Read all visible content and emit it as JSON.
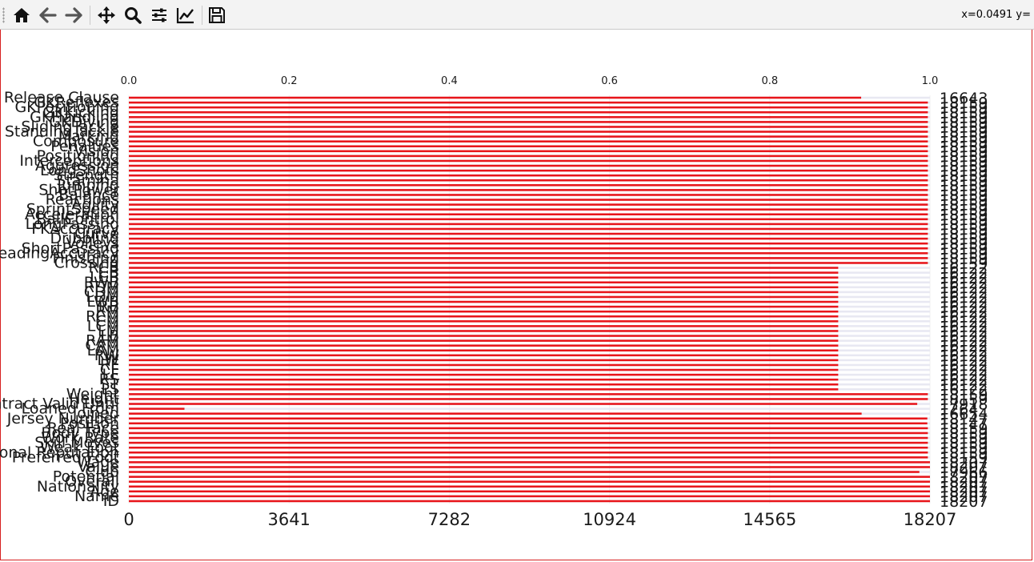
{
  "toolbar": {
    "buttons": [
      {
        "name": "home-icon",
        "label": "Home"
      },
      {
        "name": "back-icon",
        "label": "Back"
      },
      {
        "name": "forward-icon",
        "label": "Forward"
      },
      {
        "name": "pan-icon",
        "label": "Pan"
      },
      {
        "name": "zoom-icon",
        "label": "Zoom"
      },
      {
        "name": "subplots-icon",
        "label": "Configure subplots"
      },
      {
        "name": "axes-edit-icon",
        "label": "Edit axis"
      },
      {
        "name": "save-icon",
        "label": "Save"
      }
    ],
    "coords_text": "x=0.0491 y="
  },
  "colors": {
    "bar": "#e8161b",
    "remainder": "#e8e8f2",
    "text": "#1a1a1a"
  },
  "chart_data": {
    "type": "bar",
    "orientation": "horizontal",
    "total": 18207,
    "categories": [
      "Release Clause",
      "GKReflexes",
      "GKPositioning",
      "GKKicking",
      "GKHandling",
      "GKDiving",
      "SlidingTackle",
      "StandingTackle",
      "Marking",
      "Composure",
      "Penalties",
      "Vision",
      "Positioning",
      "Interceptions",
      "Aggression",
      "LongShots",
      "Strength",
      "Stamina",
      "Jumping",
      "ShotPower",
      "Balance",
      "Reactions",
      "Agility",
      "SprintSpeed",
      "Acceleration",
      "BallControl",
      "LongPassing",
      "FKAccuracy",
      "Curve",
      "Dribbling",
      "Volleys",
      "ShortPassing",
      "HeadingAccuracy",
      "Finishing",
      "Crossing",
      "RCB",
      "CB",
      "LCB",
      "RWB",
      "RDM",
      "CDM",
      "LDM",
      "LWB",
      "RB",
      "RM",
      "RCM",
      "CM",
      "LCM",
      "LM",
      "LB",
      "RAM",
      "CAM",
      "LAM",
      "RW",
      "LW",
      "RF",
      "CF",
      "LF",
      "RS",
      "ST",
      "LS",
      "Weight",
      "Height",
      "Contract Valid Until",
      "Loaned From",
      "Joined",
      "Jersey Number",
      "Position",
      "Real Face",
      "Body Type",
      "Work Rate",
      "Skill Moves",
      "Weak Foot",
      "International Reputation",
      "Preferred Foot",
      "Wage",
      "Value",
      "Club",
      "Potential",
      "Overall",
      "Nationality",
      "Age",
      "Name",
      "ID"
    ],
    "values": [
      16643,
      18159,
      18159,
      18159,
      18159,
      18159,
      18159,
      18159,
      18159,
      18159,
      18159,
      18159,
      18159,
      18159,
      18159,
      18159,
      18159,
      18159,
      18159,
      18159,
      18159,
      18159,
      18159,
      18159,
      18159,
      18159,
      18159,
      18159,
      18159,
      18159,
      18159,
      18159,
      18159,
      18159,
      18159,
      16122,
      16122,
      16122,
      16122,
      16122,
      16122,
      16122,
      16122,
      16122,
      16122,
      16122,
      16122,
      16122,
      16122,
      16122,
      16122,
      16122,
      16122,
      16122,
      16122,
      16122,
      16122,
      16122,
      16122,
      16122,
      16122,
      18159,
      18159,
      17918,
      1264,
      16654,
      18147,
      18147,
      18159,
      18159,
      18159,
      18159,
      18159,
      18159,
      18159,
      18207,
      18207,
      17966,
      18207,
      18207,
      18207,
      18207,
      18207,
      18207
    ],
    "value_labels": [
      "16643",
      "18159",
      "18159",
      "18159",
      "18159",
      "18159",
      "18159",
      "18159",
      "18159",
      "18159",
      "18159",
      "18159",
      "18159",
      "18159",
      "18159",
      "18159",
      "18159",
      "18159",
      "18159",
      "18159",
      "18159",
      "18159",
      "18159",
      "18159",
      "18159",
      "18159",
      "18159",
      "18159",
      "18159",
      "18159",
      "18159",
      "18159",
      "18159",
      "18159",
      "18159",
      "16122",
      "16122",
      "16122",
      "16122",
      "16122",
      "16122",
      "16122",
      "16122",
      "16122",
      "16122",
      "16122",
      "16122",
      "16122",
      "16122",
      "16122",
      "16122",
      "16122",
      "16122",
      "16122",
      "16122",
      "16122",
      "16122",
      "16122",
      "16122",
      "16122",
      "16122",
      "18159",
      "18159",
      "17918",
      "1264",
      "16654",
      "18147",
      "18147",
      "18159",
      "18159",
      "18159",
      "18159",
      "18159",
      "18159",
      "18159",
      "18207",
      "18207",
      "17966",
      "18207",
      "18207",
      "18207",
      "18207",
      "18207",
      "18207"
    ],
    "top_axis": {
      "ticks": [
        "0.0",
        "0.2",
        "0.4",
        "0.6",
        "0.8",
        "1.0"
      ],
      "range": [
        0,
        1
      ]
    },
    "bottom_axis": {
      "ticks": [
        "0",
        "3641",
        "7282",
        "10924",
        "14565",
        "18207"
      ],
      "range": [
        0,
        18207
      ]
    },
    "grid": true
  }
}
